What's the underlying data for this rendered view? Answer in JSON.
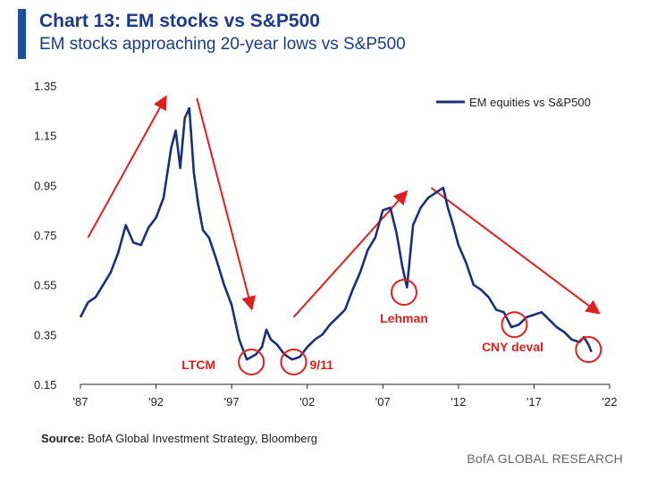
{
  "header": {
    "title": "Chart 13: EM stocks vs S&P500",
    "subtitle": "EM stocks approaching 20-year lows vs S&P500",
    "accent_color": "#1f4fa3"
  },
  "footer": {
    "source_label": "Source:",
    "source_text": "BofA Global Investment Strategy, Bloomberg",
    "credit": "BofA GLOBAL RESEARCH"
  },
  "chart_data": {
    "type": "line",
    "title": "",
    "xlabel": "",
    "ylabel": "",
    "xlim": [
      1987,
      2022
    ],
    "ylim": [
      0.15,
      1.35
    ],
    "x_ticks": [
      1987,
      1992,
      1997,
      2002,
      2007,
      2012,
      2017,
      2022
    ],
    "x_tick_labels": [
      "'87",
      "'92",
      "'97",
      "'02",
      "'07",
      "'12",
      "'17",
      "'22"
    ],
    "y_ticks": [
      0.15,
      0.35,
      0.55,
      0.75,
      0.95,
      1.15,
      1.35
    ],
    "y_tick_labels": [
      "0.15",
      "0.35",
      "0.55",
      "0.75",
      "0.95",
      "1.15",
      "1.35"
    ],
    "grid": false,
    "legend_position": "top-right",
    "series": [
      {
        "name": "EM equities vs S&P500",
        "color": "#1b2f7a",
        "x": [
          1987.0,
          1987.5,
          1988.0,
          1988.5,
          1989.0,
          1989.5,
          1990.0,
          1990.5,
          1991.0,
          1991.5,
          1992.0,
          1992.5,
          1993.0,
          1993.3,
          1993.6,
          1993.9,
          1994.2,
          1994.5,
          1994.8,
          1995.1,
          1995.5,
          1996.0,
          1996.5,
          1997.0,
          1997.5,
          1998.0,
          1998.3,
          1998.6,
          1999.0,
          1999.3,
          1999.6,
          2000.0,
          2000.5,
          2001.0,
          2001.5,
          2002.0,
          2002.5,
          2003.0,
          2003.5,
          2004.0,
          2004.5,
          2005.0,
          2005.5,
          2006.0,
          2006.5,
          2007.0,
          2007.5,
          2007.9,
          2008.3,
          2008.6,
          2009.0,
          2009.5,
          2010.0,
          2010.5,
          2011.0,
          2011.3,
          2011.6,
          2012.0,
          2012.5,
          2013.0,
          2013.5,
          2014.0,
          2014.5,
          2015.0,
          2015.5,
          2016.0,
          2016.5,
          2017.0,
          2017.5,
          2018.0,
          2018.5,
          2019.0,
          2019.5,
          2020.0,
          2020.3,
          2020.6,
          2020.8
        ],
        "values": [
          0.42,
          0.48,
          0.5,
          0.55,
          0.6,
          0.68,
          0.79,
          0.72,
          0.71,
          0.78,
          0.82,
          0.9,
          1.1,
          1.17,
          1.02,
          1.22,
          1.26,
          1.0,
          0.87,
          0.77,
          0.74,
          0.65,
          0.55,
          0.47,
          0.33,
          0.25,
          0.26,
          0.27,
          0.3,
          0.37,
          0.33,
          0.31,
          0.27,
          0.25,
          0.26,
          0.3,
          0.33,
          0.35,
          0.39,
          0.42,
          0.45,
          0.53,
          0.6,
          0.69,
          0.74,
          0.85,
          0.86,
          0.76,
          0.62,
          0.54,
          0.79,
          0.86,
          0.9,
          0.92,
          0.94,
          0.86,
          0.8,
          0.71,
          0.64,
          0.55,
          0.53,
          0.5,
          0.45,
          0.44,
          0.38,
          0.39,
          0.42,
          0.43,
          0.44,
          0.41,
          0.38,
          0.36,
          0.33,
          0.32,
          0.34,
          0.31,
          0.28
        ]
      }
    ],
    "annotations": [
      {
        "label": "LTCM",
        "x": 1998.3,
        "y": 0.24
      },
      {
        "label": "9/11",
        "x": 2001.1,
        "y": 0.24
      },
      {
        "label": "Lehman",
        "x": 2008.4,
        "y": 0.52
      },
      {
        "label": "CNY deval",
        "x": 2015.7,
        "y": 0.39
      },
      {
        "label": "",
        "x": 2020.6,
        "y": 0.29
      }
    ],
    "trend_arrows": [
      {
        "from": [
          1987.5,
          0.74
        ],
        "to": [
          1992.6,
          1.3
        ]
      },
      {
        "from": [
          1994.7,
          1.3
        ],
        "to": [
          1998.3,
          0.46
        ]
      },
      {
        "from": [
          2001.1,
          0.42
        ],
        "to": [
          2008.5,
          0.92
        ]
      },
      {
        "from": [
          2010.2,
          0.94
        ],
        "to": [
          2021.2,
          0.44
        ]
      }
    ],
    "annotation_color": "#e02020"
  }
}
